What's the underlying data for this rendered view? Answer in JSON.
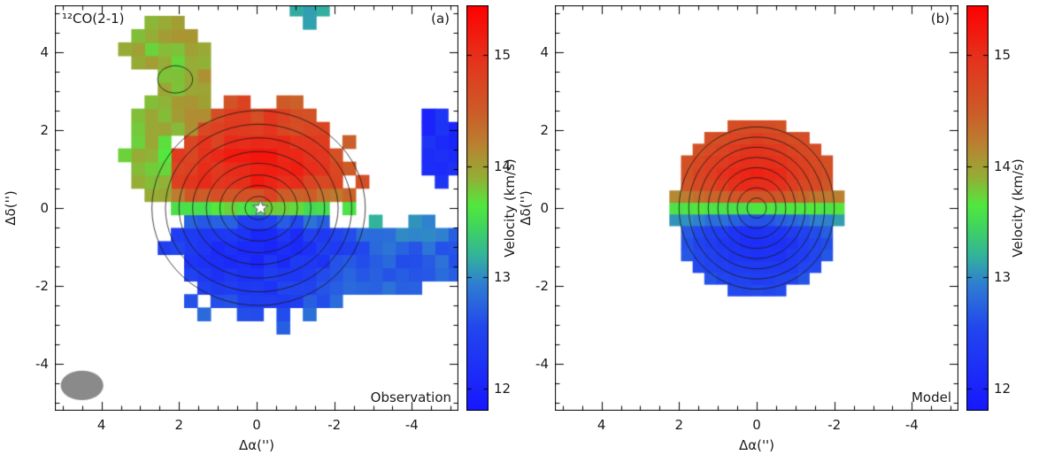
{
  "chart_data": {
    "type": "heatmap",
    "panels": [
      {
        "key": "observation",
        "corner_label": "(a)",
        "line_label": "¹²CO(2-1)",
        "caption": "Observation"
      },
      {
        "key": "model",
        "corner_label": "(b)",
        "line_label": "",
        "caption": "Model"
      }
    ],
    "axes": {
      "xlabel": "Δα('')",
      "ylabel": "Δδ('')",
      "xlim": [
        5.2,
        -5.2
      ],
      "ylim": [
        -5.2,
        5.2
      ],
      "xticks": [
        4,
        2,
        0,
        -2,
        -4
      ],
      "yticks": [
        -4,
        -2,
        0,
        2,
        4
      ],
      "minor_tick_step": 0.5
    },
    "colorbar": {
      "label": "Velocity (km/s)",
      "vmin": 11.8,
      "vmax": 15.45,
      "ticks": [
        12,
        13,
        14,
        15
      ],
      "stops": [
        [
          11.8,
          "#1717ff"
        ],
        [
          12.55,
          "#2247ee"
        ],
        [
          12.95,
          "#2f80d0"
        ],
        [
          13.2,
          "#33b49a"
        ],
        [
          13.45,
          "#3fd45f"
        ],
        [
          13.65,
          "#52e83e"
        ],
        [
          13.9,
          "#94ae36"
        ],
        [
          14.2,
          "#ba8131"
        ],
        [
          14.5,
          "#cd5b28"
        ],
        [
          15.0,
          "#e6301c"
        ],
        [
          15.45,
          "#ff0000"
        ]
      ]
    },
    "velocity_field": {
      "vsys": 13.62,
      "amplitude": 1.95,
      "y_scale": 0.5,
      "radial_falloff_obs": 0.17,
      "radial_falloff_model": 0.22,
      "noise_obs": 0.16,
      "noise_model": 0.05
    },
    "observation": {
      "pixel_size": 0.34,
      "blobs": [
        {
          "cx": 2.3,
          "cy": 4.2,
          "rx": 1.05,
          "ry": 0.75,
          "v": 13.9
        },
        {
          "cx": 1.9,
          "cy": 3.0,
          "rx": 0.75,
          "ry": 1.1,
          "v": 13.95
        },
        {
          "cx": 2.75,
          "cy": 1.5,
          "rx": 0.6,
          "ry": 1.4,
          "v": 13.8
        },
        {
          "cx": -4.7,
          "cy": 1.5,
          "rx": 0.55,
          "ry": 1.0,
          "v": 12.1
        },
        {
          "cx": -1.4,
          "cy": 5.1,
          "rx": 0.4,
          "ry": 0.35,
          "v": 13.15
        },
        {
          "cx": 0.1,
          "cy": 0.9,
          "rx": 2.5,
          "ry": 1.9
        },
        {
          "cx": -0.2,
          "cy": -1.2,
          "rx": 2.5,
          "ry": 1.7
        },
        {
          "cx": -3.1,
          "cy": -1.3,
          "rx": 2.3,
          "ry": 1.0
        }
      ],
      "contours": {
        "cx": -0.05,
        "cy": 0.0,
        "levels": [
          [
            0.35,
            0.3
          ],
          [
            0.68,
            0.58
          ],
          [
            1.0,
            0.85
          ],
          [
            1.35,
            1.15
          ],
          [
            1.7,
            1.45
          ],
          [
            2.05,
            1.8
          ],
          [
            2.4,
            2.15
          ],
          [
            2.75,
            2.5
          ]
        ]
      },
      "extra_contour": {
        "cx": 2.1,
        "cy": 3.3,
        "levels": [
          [
            0.45,
            0.35
          ]
        ]
      },
      "star": {
        "x": -0.1,
        "y": 0.0
      },
      "beam": {
        "cx": 4.5,
        "cy": -4.55,
        "rx": 0.55,
        "ry": 0.38,
        "color": "#8a8a8a"
      }
    },
    "model": {
      "pixel_size": 0.3,
      "radius_x": 2.15,
      "radius_y": 2.25,
      "contours": {
        "cx": 0.0,
        "cy": 0.0,
        "levels": [
          [
            0.25,
            0.26
          ],
          [
            0.5,
            0.52
          ],
          [
            0.75,
            0.78
          ],
          [
            1.0,
            1.04
          ],
          [
            1.25,
            1.3
          ],
          [
            1.5,
            1.56
          ],
          [
            1.75,
            1.82
          ],
          [
            2.0,
            2.08
          ]
        ]
      }
    }
  }
}
